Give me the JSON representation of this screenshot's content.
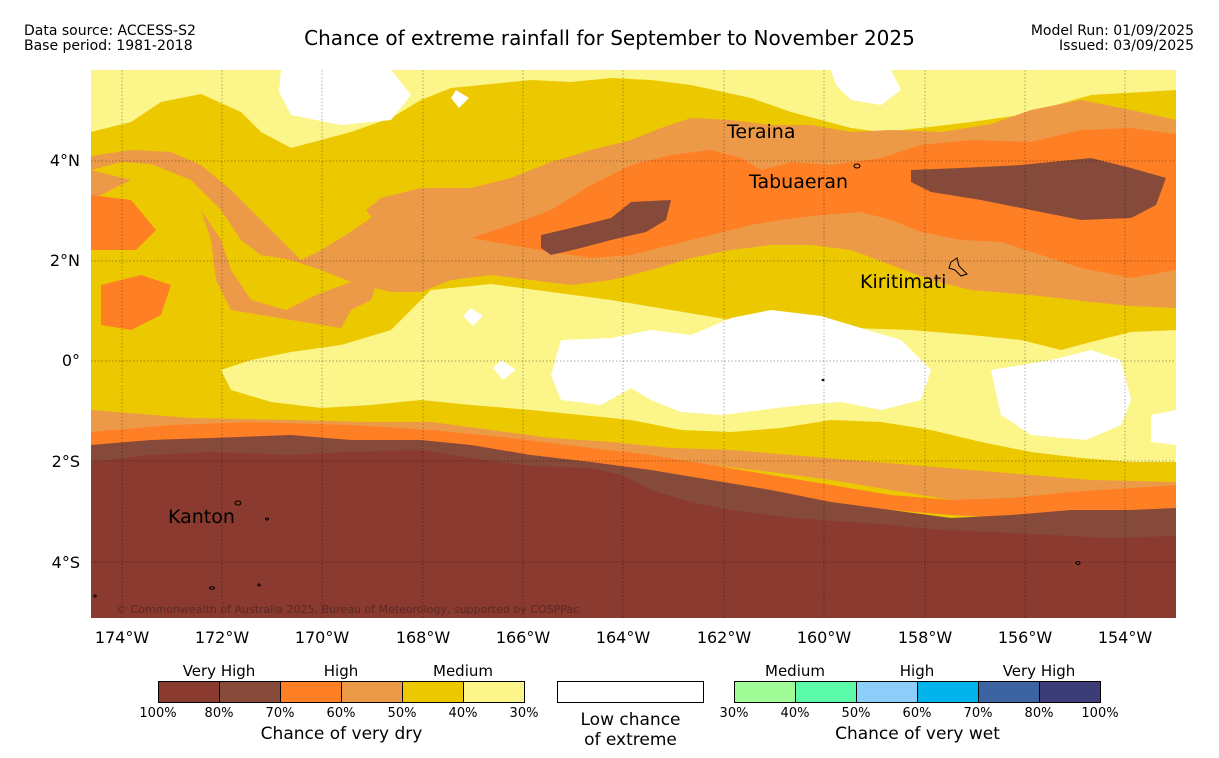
{
  "header": {
    "data_source": "Data source: ACCESS-S2",
    "base_period": "Base period: 1981-2018",
    "title": "Chance of extreme rainfall for September to November 2025",
    "model_run": "Model Run: 01/09/2025",
    "issued": "Issued: 03/09/2025"
  },
  "map": {
    "places": [
      "Teraina",
      "Tabuaeran",
      "Kiritimati",
      "Kanton"
    ],
    "latitude_labels": [
      "4°N",
      "2°N",
      "0°",
      "2°S",
      "4°S"
    ],
    "longitude_labels": [
      "174°W",
      "172°W",
      "170°W",
      "168°W",
      "166°W",
      "164°W",
      "162°W",
      "160°W",
      "158°W",
      "156°W",
      "154°W"
    ],
    "copyright": "© Commonwealth of Australia 2025, Bureau of Meteorology, supported by COSPPac",
    "colors": {
      "dry_100_80": "#8b3a30",
      "dry_80_70": "#864a3a",
      "dry_70_60": "#ff7f24",
      "dry_60_50": "#ec9a48",
      "dry_50_40": "#ecc800",
      "dry_40_30": "#fbf58a",
      "low": "#ffffff"
    }
  },
  "legend": {
    "dry": {
      "categories": [
        "Very High",
        "High",
        "Medium"
      ],
      "ticks": [
        "100%",
        "80%",
        "70%",
        "60%",
        "50%",
        "40%",
        "30%"
      ],
      "colors": [
        "#8b3a30",
        "#864a3a",
        "#ff7f24",
        "#ec9a48",
        "#ecc800",
        "#fbf58a"
      ],
      "caption": "Chance of very dry"
    },
    "low": {
      "line1": "Low chance",
      "line2": "of extreme"
    },
    "wet": {
      "categories": [
        "Medium",
        "High",
        "Very High"
      ],
      "ticks": [
        "30%",
        "40%",
        "50%",
        "60%",
        "70%",
        "80%",
        "100%"
      ],
      "colors": [
        "#a0fa96",
        "#5afaaa",
        "#8ccdfa",
        "#00b4eb",
        "#3c64a0",
        "#3c3c78"
      ],
      "caption": "Chance of very wet"
    }
  }
}
